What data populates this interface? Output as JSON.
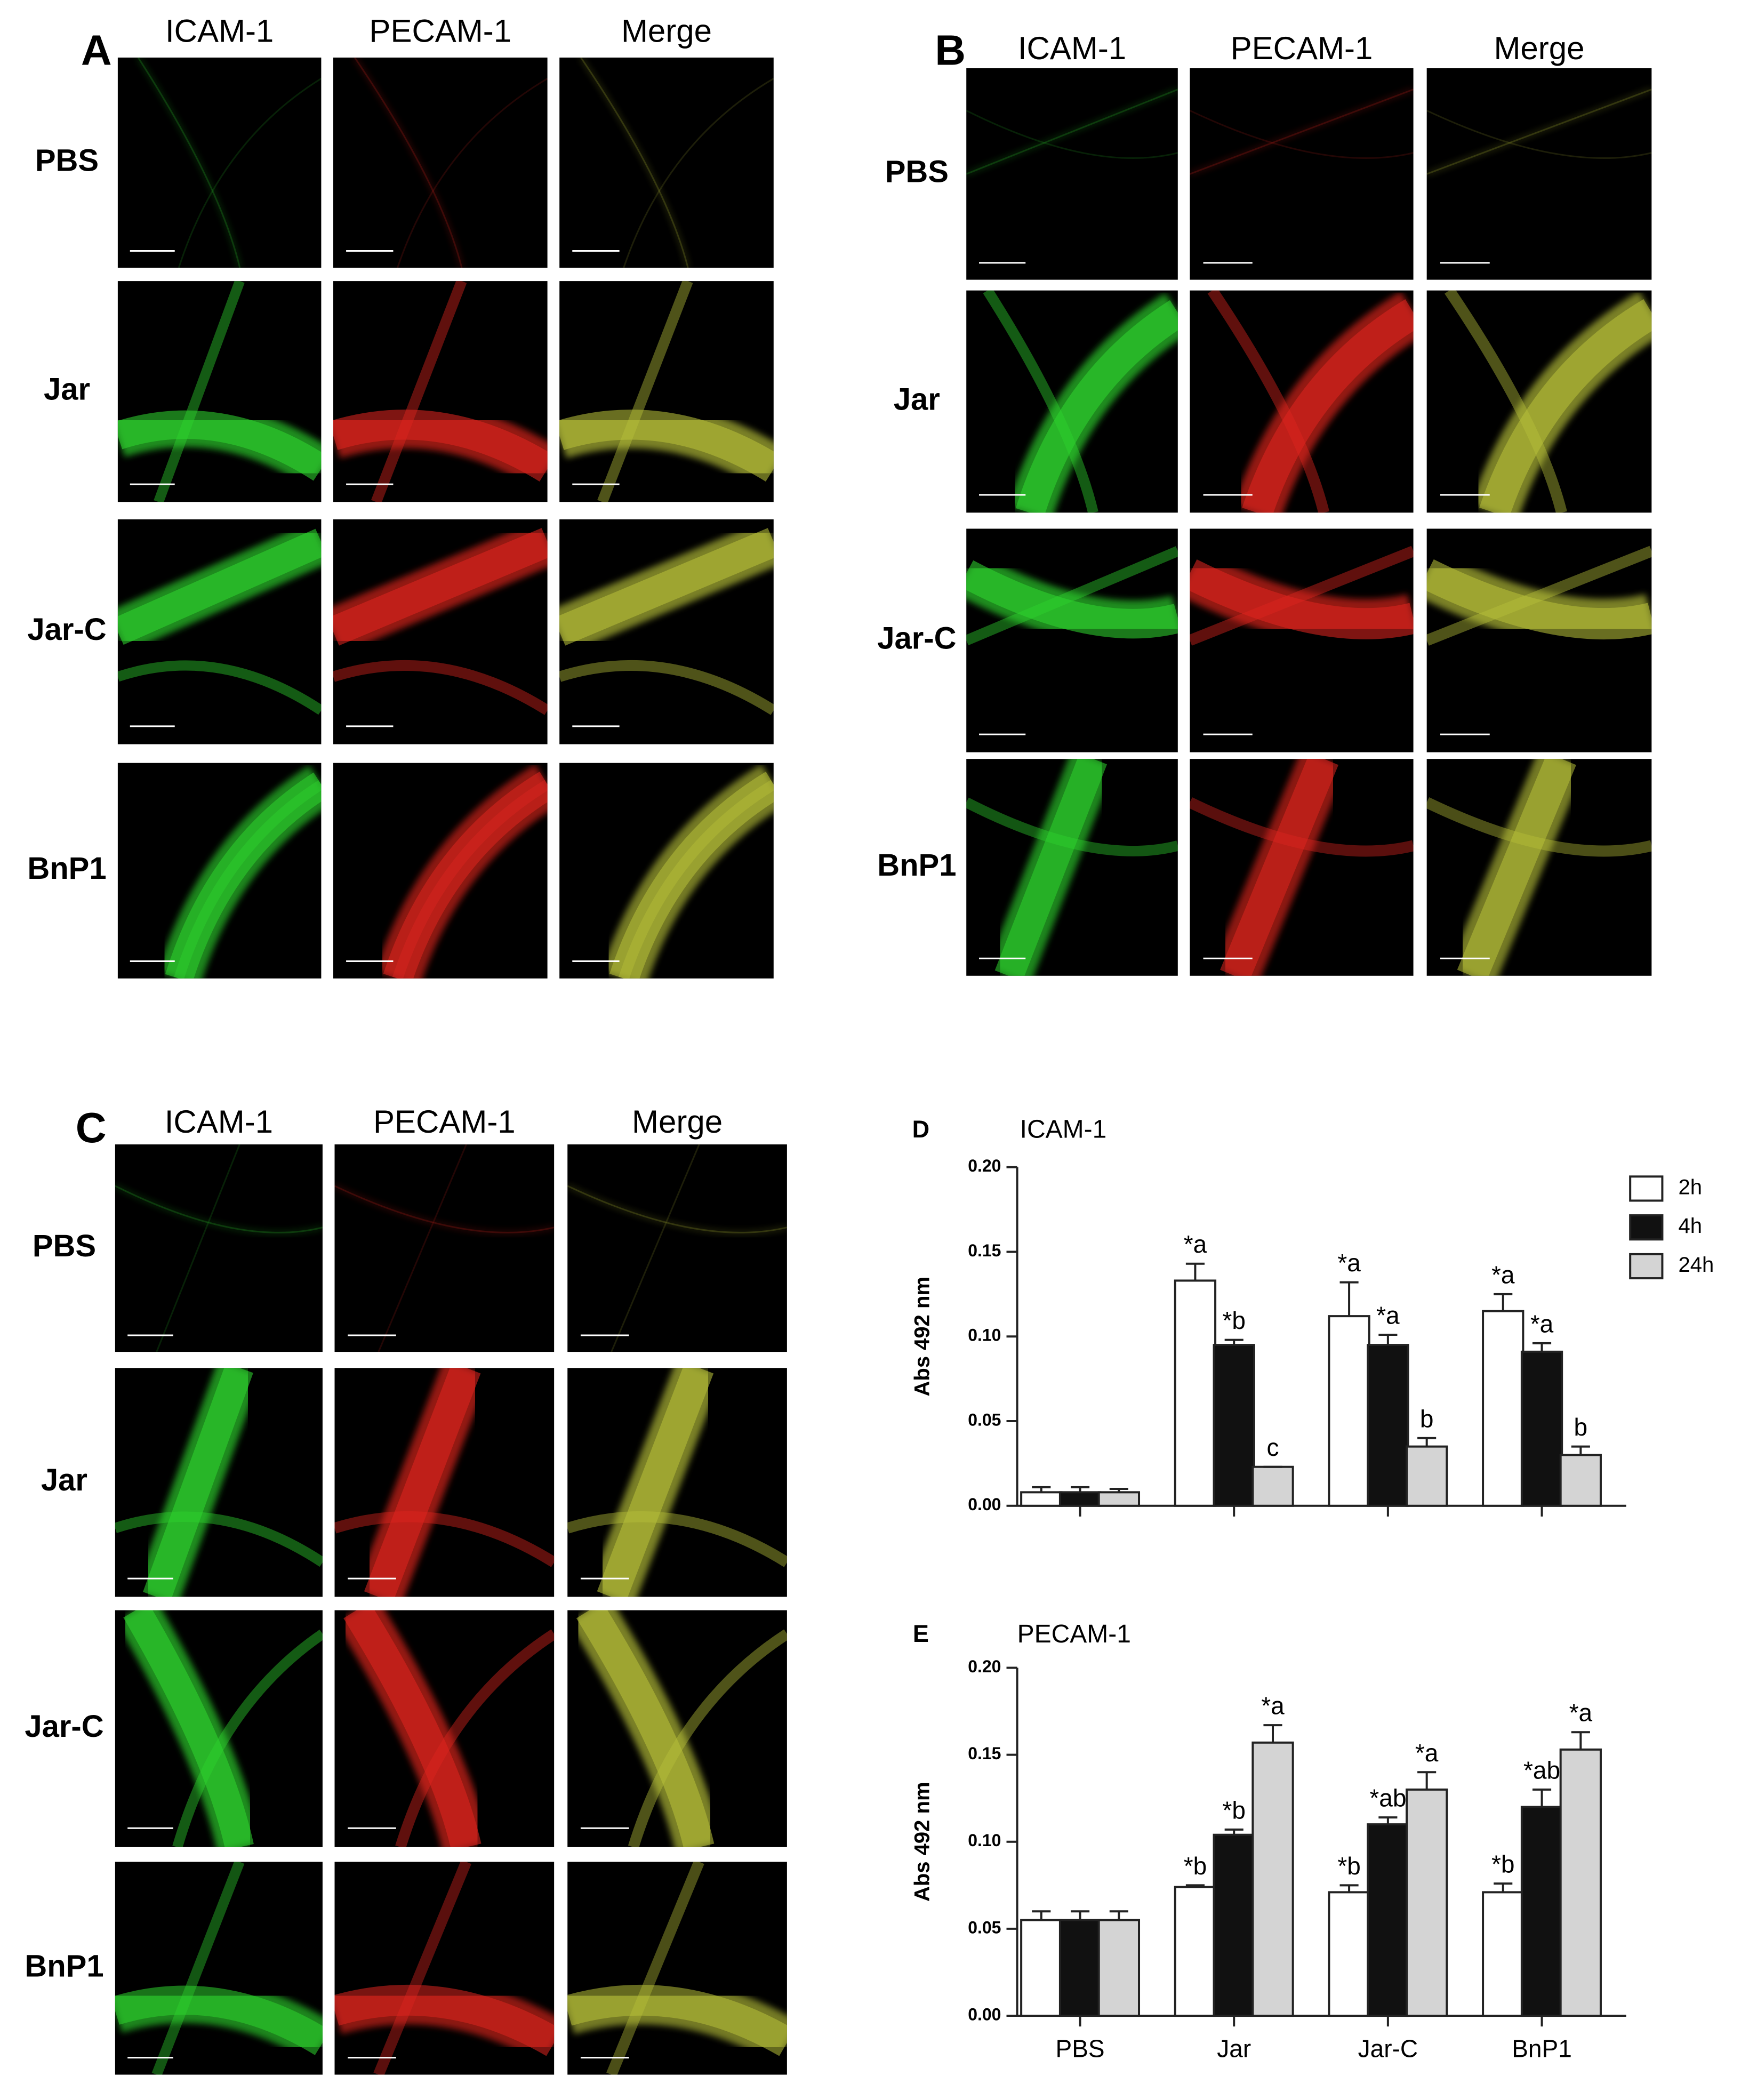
{
  "panels": [
    {
      "letter": "A",
      "columns": [
        "ICAM-1",
        "PECAM-1",
        "Merge"
      ],
      "rows": [
        "PBS",
        "Jar",
        "Jar-C",
        "BnP1"
      ]
    },
    {
      "letter": "B",
      "columns": [
        "ICAM-1",
        "PECAM-1",
        "Merge"
      ],
      "rows": [
        "PBS",
        "Jar",
        "Jar-C",
        "BnP1"
      ]
    },
    {
      "letter": "C",
      "columns": [
        "ICAM-1",
        "PECAM-1",
        "Merge"
      ],
      "rows": [
        "PBS",
        "Jar",
        "Jar-C",
        "BnP1"
      ]
    }
  ],
  "chart_data": [
    {
      "type": "bar",
      "letter": "D",
      "title": "ICAM-1",
      "ylabel": "Abs 492 nm",
      "categories": [
        null,
        null,
        null,
        null
      ],
      "series": [
        {
          "name": "2h",
          "color": "#ffffff",
          "values": [
            0.008,
            0.133,
            0.112,
            0.115
          ],
          "errors": [
            0.003,
            0.01,
            0.02,
            0.01
          ],
          "annotations": [
            null,
            "*a",
            "*a",
            "*a"
          ]
        },
        {
          "name": "4h",
          "color": "#111111",
          "values": [
            0.008,
            0.095,
            0.095,
            0.091
          ],
          "errors": [
            0.003,
            0.003,
            0.006,
            0.005
          ],
          "annotations": [
            null,
            "*b",
            "*a",
            "*a"
          ]
        },
        {
          "name": "24h",
          "color": "#d4d4d4",
          "values": [
            0.008,
            0.023,
            0.035,
            0.03
          ],
          "errors": [
            0.002,
            0.0,
            0.005,
            0.005
          ],
          "annotations": [
            null,
            "c",
            "b",
            "b"
          ]
        }
      ],
      "ylim": [
        0,
        0.2
      ],
      "yticks": [
        {
          "value": 0,
          "label": "0.00"
        },
        {
          "value": 0.05,
          "label": "0.05"
        },
        {
          "value": 0.1,
          "label": "0.10"
        },
        {
          "value": 0.15,
          "label": "0.15"
        },
        {
          "value": 0.2,
          "label": "0.20"
        }
      ],
      "legend": "upper right"
    },
    {
      "type": "bar",
      "letter": "E",
      "title": "PECAM-1",
      "ylabel": "Abs 492 nm",
      "categories": [
        "PBS",
        "Jar",
        "Jar-C",
        "BnP1"
      ],
      "series": [
        {
          "color": "#ffffff",
          "values": [
            0.055,
            0.074,
            0.071,
            0.071
          ],
          "errors": [
            0.005,
            0.001,
            0.004,
            0.005
          ],
          "annotations": [
            null,
            "*b",
            "*b",
            "*b"
          ]
        },
        {
          "color": "#111111",
          "values": [
            0.055,
            0.104,
            0.11,
            0.12
          ],
          "errors": [
            0.005,
            0.003,
            0.004,
            0.01
          ],
          "annotations": [
            null,
            "*b",
            "*ab",
            "*ab"
          ]
        },
        {
          "color": "#d4d4d4",
          "values": [
            0.055,
            0.157,
            0.13,
            0.153
          ],
          "errors": [
            0.005,
            0.01,
            0.01,
            0.01
          ],
          "annotations": [
            null,
            "*a",
            "*a",
            "*a"
          ]
        }
      ],
      "ylim": [
        0,
        0.2
      ],
      "yticks": [
        {
          "value": 0,
          "label": "0.00"
        },
        {
          "value": 0.05,
          "label": "0.05"
        },
        {
          "value": 0.1,
          "label": "0.10"
        },
        {
          "value": 0.15,
          "label": "0.15"
        },
        {
          "value": 0.2,
          "label": "0.20"
        }
      ]
    }
  ]
}
